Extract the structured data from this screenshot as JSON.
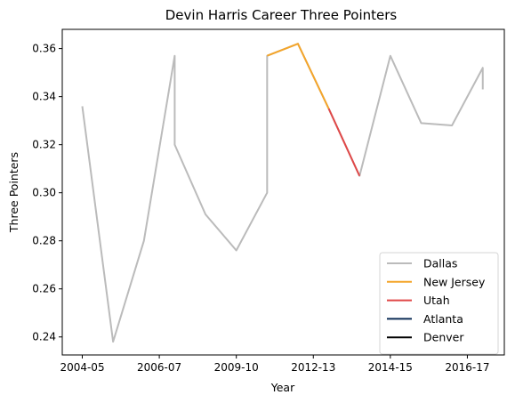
{
  "chart_data": {
    "type": "line",
    "title": "Devin Harris Career Three Pointers",
    "xlabel": "Year",
    "ylabel": "Three Pointers",
    "xlim": [
      -0.65,
      13.7
    ],
    "ylim": [
      0.2325,
      0.368
    ],
    "x_ticks": [
      {
        "pos": 0,
        "label": "2004-05"
      },
      {
        "pos": 2.5,
        "label": "2006-07"
      },
      {
        "pos": 5,
        "label": "2009-10"
      },
      {
        "pos": 7.5,
        "label": "2012-13"
      },
      {
        "pos": 10,
        "label": "2014-15"
      },
      {
        "pos": 12.5,
        "label": "2016-17"
      }
    ],
    "y_ticks": [
      0.24,
      0.26,
      0.28,
      0.3,
      0.32,
      0.34,
      0.36
    ],
    "y_tick_labels": [
      "0.24",
      "0.26",
      "0.28",
      "0.30",
      "0.32",
      "0.34",
      "0.36"
    ],
    "grid": false,
    "legend_position": "bottom-right",
    "series": [
      {
        "name": "Dallas",
        "color": "#bbbbbb",
        "x": [
          0,
          1,
          2,
          3,
          3,
          4,
          5,
          6,
          6,
          7,
          8,
          9,
          10,
          11,
          12,
          13,
          13
        ],
        "y": [
          0.336,
          0.238,
          0.28,
          0.357,
          0.32,
          0.291,
          0.276,
          0.3,
          0.357,
          0.362,
          0.335,
          0.307,
          0.357,
          0.329,
          0.328,
          0.352,
          0.343
        ]
      },
      {
        "name": "New Jersey",
        "color": "#f4a52a",
        "x": [
          6,
          7,
          8
        ],
        "y": [
          0.357,
          0.362,
          0.335
        ]
      },
      {
        "name": "Utah",
        "color": "#e04848",
        "x": [
          8,
          9
        ],
        "y": [
          0.335,
          0.307
        ]
      },
      {
        "name": "Atlanta",
        "color": "#0c2c56",
        "x": [],
        "y": []
      },
      {
        "name": "Denver",
        "color": "#000000",
        "x": [],
        "y": []
      }
    ]
  }
}
